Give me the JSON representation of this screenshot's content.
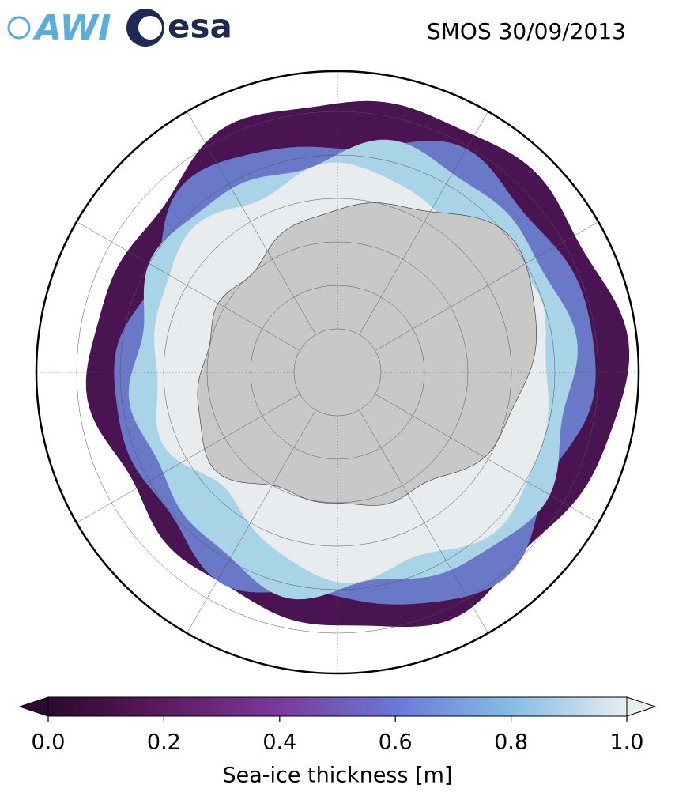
{
  "header": {
    "title": "SMOS 30/09/2013",
    "logos": [
      "AWI",
      "esa"
    ]
  },
  "colorbar": {
    "label": "Sea-ice thickness [m]",
    "lim": [
      0,
      1
    ],
    "ticks": [
      {
        "value": 0,
        "label": "0.0"
      },
      {
        "value": 0.2,
        "label": "0.2"
      },
      {
        "value": 0.4,
        "label": "0.4"
      },
      {
        "value": 0.6,
        "label": "0.6"
      },
      {
        "value": 0.8,
        "label": "0.8"
      },
      {
        "value": 1,
        "label": "1.0"
      }
    ],
    "colors": [
      "#2a0a2e",
      "#5c1a5e",
      "#7a3a9a",
      "#6a78d8",
      "#86bce4",
      "#e6eef0"
    ]
  }
}
